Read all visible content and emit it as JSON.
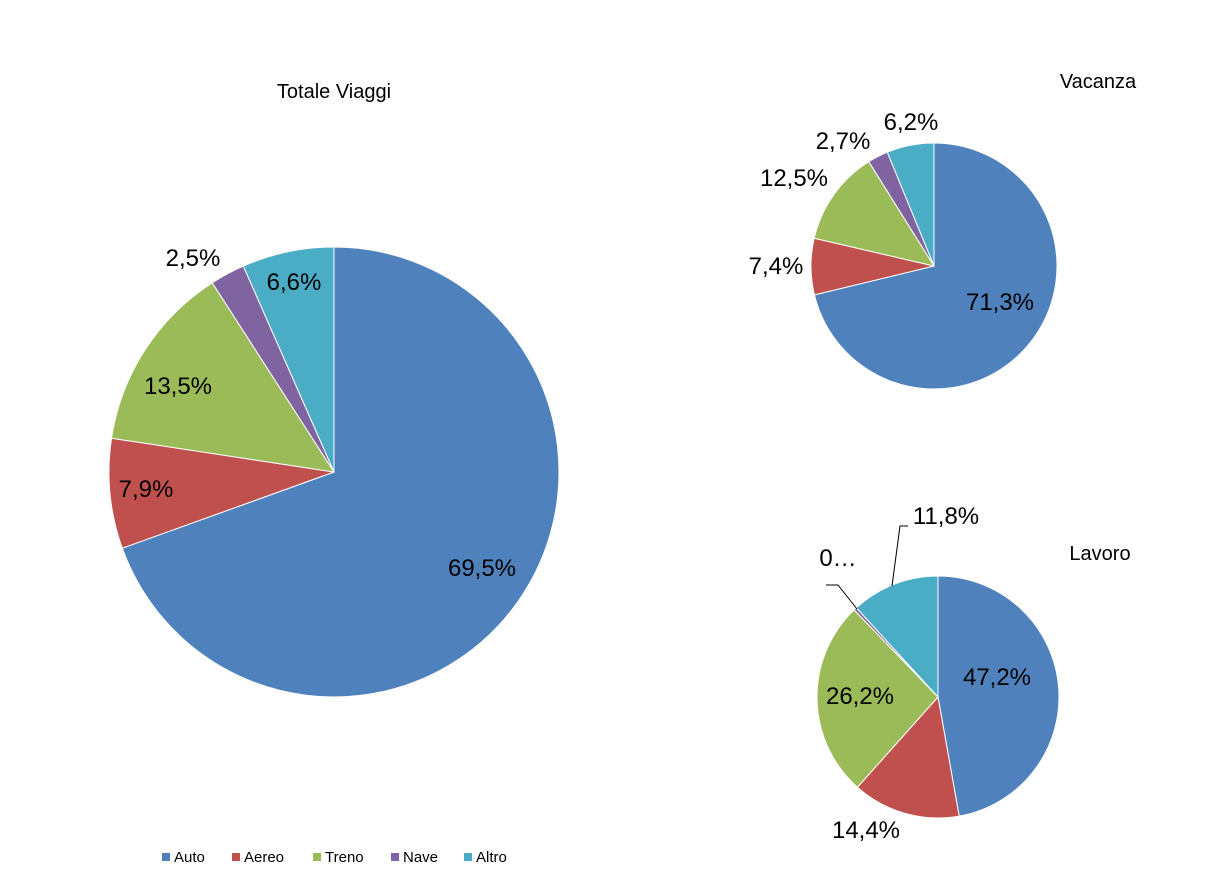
{
  "chart_data": {
    "type": "pie",
    "legend": {
      "position": "bottom-left",
      "entries": [
        "Auto",
        "Aereo",
        "Treno",
        "Nave",
        "Altro"
      ],
      "colors": [
        "#4F81BD",
        "#C0504D",
        "#9BBB59",
        "#8064A2",
        "#4BACC6"
      ]
    },
    "charts": [
      {
        "title": "Totale Viaggi",
        "values": [
          69.5,
          7.9,
          13.5,
          2.5,
          6.6
        ],
        "labels": [
          "69,5%",
          "7,9%",
          "13,5%",
          "2,5%",
          "6,6%"
        ]
      },
      {
        "title": "Vacanza",
        "values": [
          71.3,
          7.4,
          12.5,
          2.7,
          6.2
        ],
        "labels": [
          "71,3%",
          "7,4%",
          "12,5%",
          "2,7%",
          "6,2%"
        ]
      },
      {
        "title": "Lavoro",
        "values": [
          47.2,
          14.4,
          26.2,
          0.4,
          11.8
        ],
        "labels": [
          "47,2%",
          "14,4%",
          "26,2%",
          "0…",
          "11,8%"
        ]
      }
    ]
  }
}
